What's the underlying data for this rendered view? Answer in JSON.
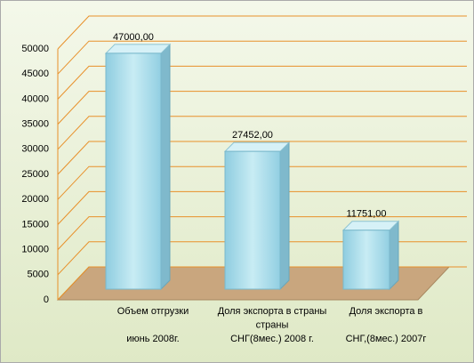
{
  "chart_data": {
    "type": "bar3d",
    "categories": [
      "Объем отгрузки\nиюнь 2008г.",
      "Доля экспорта в страны\nстраны\nСНГ(8мес.) 2008 г.",
      "Доля экспорта в\nСНГ,(8мес.) 2007г"
    ],
    "values": [
      47000,
      27452,
      11751
    ],
    "value_labels": [
      "47000,00",
      "27452,00",
      "11751,00"
    ],
    "color": "#a9dcea",
    "ylim": [
      0,
      50000
    ],
    "yticks": [
      0,
      5000,
      10000,
      15000,
      20000,
      25000,
      30000,
      35000,
      40000,
      45000,
      50000
    ],
    "grid": true
  }
}
